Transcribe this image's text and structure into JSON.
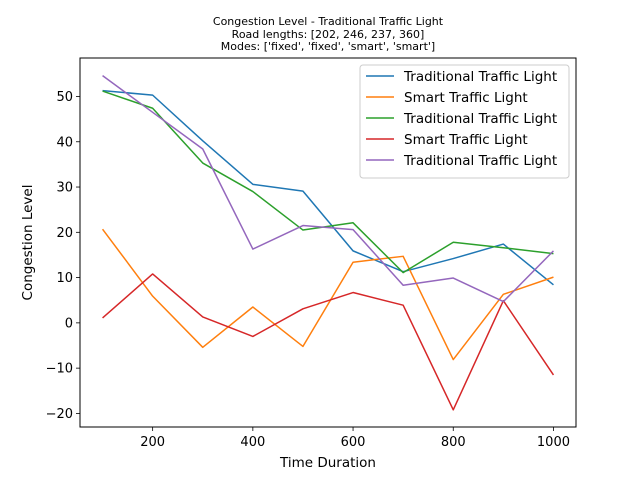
{
  "chart_data": {
    "type": "line",
    "title_lines": [
      "Congestion Level - Traditional Traffic Light",
      "Road lengths: [202, 246, 237, 360]",
      "Modes: ['fixed', 'fixed', 'smart', 'smart']"
    ],
    "xlabel": "Time Duration",
    "ylabel": "Congestion Level",
    "x": [
      100,
      200,
      300,
      400,
      500,
      600,
      700,
      800,
      900,
      1000
    ],
    "xlim": [
      55,
      1045
    ],
    "ylim": [
      -23,
      58.5
    ],
    "xticks": [
      200,
      400,
      600,
      800,
      1000
    ],
    "yticks": [
      -20,
      -10,
      0,
      10,
      20,
      30,
      40,
      50
    ],
    "grid": false,
    "legend_position": "top-right",
    "series": [
      {
        "name": "Traditional Traffic Light",
        "color": "#1f77b4",
        "values": [
          51.3,
          50.3,
          40.2,
          30.6,
          29.1,
          15.9,
          11.3,
          14.2,
          17.4,
          8.4
        ]
      },
      {
        "name": "Smart Traffic Light",
        "color": "#ff7f0e",
        "values": [
          20.7,
          5.9,
          -5.4,
          3.5,
          -5.2,
          13.4,
          14.7,
          -8.1,
          6.3,
          10.1
        ]
      },
      {
        "name": "Traditional Traffic Light",
        "color": "#2ca02c",
        "values": [
          51.2,
          47.4,
          35.3,
          29.0,
          20.5,
          22.1,
          11.1,
          17.8,
          16.6,
          15.3
        ]
      },
      {
        "name": "Smart Traffic Light",
        "color": "#d62728",
        "values": [
          1.1,
          10.8,
          1.3,
          -3.0,
          3.1,
          6.7,
          3.9,
          -19.2,
          4.9,
          -11.5
        ]
      },
      {
        "name": "Traditional Traffic Light",
        "color": "#9467bd",
        "values": [
          54.6,
          46.5,
          38.4,
          16.3,
          21.5,
          20.6,
          8.3,
          9.9,
          4.7,
          15.9
        ]
      }
    ]
  }
}
